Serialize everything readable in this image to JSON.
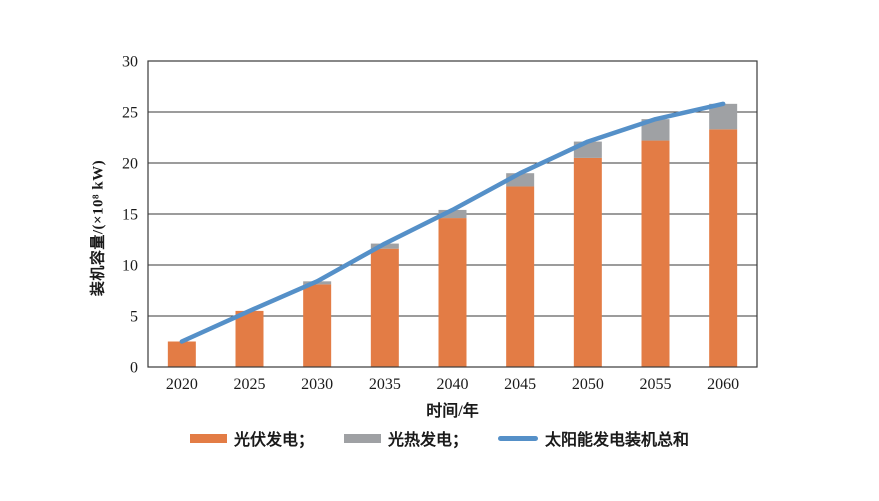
{
  "chart_data": {
    "type": "bar",
    "stacked": true,
    "title": "",
    "xlabel": "时间/年",
    "ylabel": "装机容量/(×10⁸ kW)",
    "categories": [
      "2020",
      "2025",
      "2030",
      "2035",
      "2040",
      "2045",
      "2050",
      "2055",
      "2060"
    ],
    "series": [
      {
        "name": "光伏发电",
        "type": "bar",
        "color": "#E37C45",
        "values": [
          2.5,
          5.5,
          8.1,
          11.6,
          14.6,
          17.7,
          20.5,
          22.2,
          23.3
        ]
      },
      {
        "name": "光热发电",
        "type": "bar",
        "color": "#9FA1A4",
        "values": [
          0,
          0,
          0.3,
          0.5,
          0.8,
          1.3,
          1.6,
          2.1,
          2.5
        ]
      },
      {
        "name": "太阳能发电装机总和",
        "type": "line",
        "color": "#5590C8",
        "values": [
          2.5,
          5.5,
          8.4,
          12.1,
          15.4,
          19.0,
          22.1,
          24.3,
          25.8
        ]
      }
    ],
    "ylim": [
      0,
      30
    ],
    "yticks": [
      0,
      5,
      10,
      15,
      20,
      25,
      30
    ],
    "grid": "horizontal",
    "axis_color": "#3a3a3a",
    "legend_position": "bottom",
    "legend": [
      {
        "label": "光伏发电；",
        "swatch": "bar",
        "color": "#E37C45"
      },
      {
        "label": "光热发电；",
        "swatch": "bar",
        "color": "#9FA1A4"
      },
      {
        "label": "太阳能发电装机总和",
        "swatch": "line",
        "color": "#5590C8"
      }
    ]
  }
}
